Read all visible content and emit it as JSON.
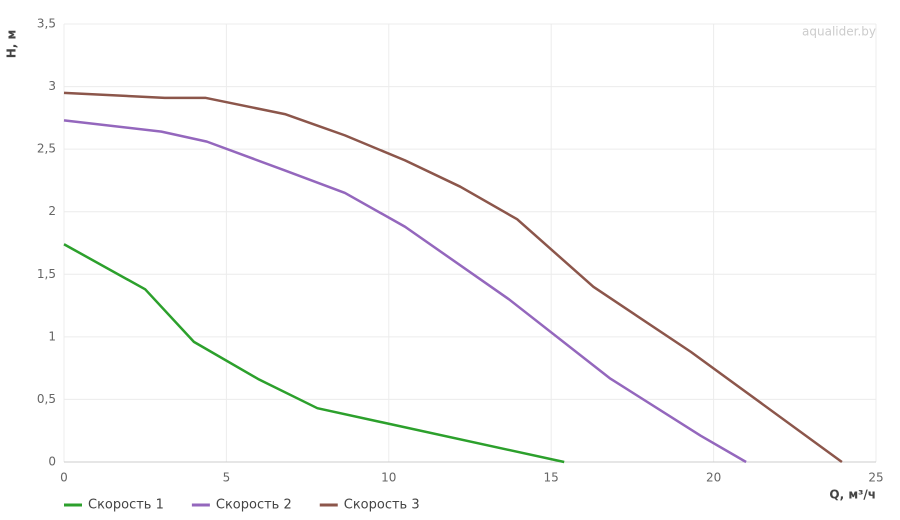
{
  "chart_data": {
    "type": "line",
    "x_label": "Q, м³/ч",
    "y_label": "H, м",
    "watermark": "aqualider.by",
    "xlim": [
      0,
      25
    ],
    "xticks": [
      0,
      5,
      10,
      15,
      20,
      25
    ],
    "ylim": [
      0,
      3.5
    ],
    "yticks": [
      0,
      {
        "value": 0.5,
        "label": "0,5"
      },
      1,
      {
        "value": 1.5,
        "label": "1,5"
      },
      2,
      {
        "value": 2.5,
        "label": "2,5"
      },
      3,
      {
        "value": 3.5,
        "label": "3,5"
      }
    ],
    "grid": true,
    "legend": "bottom-left",
    "series": [
      {
        "name": "Скорость 1",
        "color": "#2ca02c",
        "x": [
          0,
          2.5,
          4,
          6,
          7.8,
          15.4
        ],
        "values": [
          1.74,
          1.38,
          0.96,
          0.66,
          0.43,
          0
        ]
      },
      {
        "name": "Скорость 2",
        "color": "#9467bd",
        "x": [
          0,
          3,
          4.4,
          6.8,
          8.65,
          10.5,
          13.7,
          16.8,
          19.6,
          21
        ],
        "values": [
          2.73,
          2.64,
          2.56,
          2.33,
          2.15,
          1.88,
          1.3,
          0.67,
          0.21,
          0
        ]
      },
      {
        "name": "Скорость 3",
        "color": "#8c564b",
        "x": [
          0,
          3.1,
          4.35,
          6.8,
          8.65,
          10.5,
          12.2,
          13.95,
          16.3,
          19.3,
          23.95
        ],
        "values": [
          2.95,
          2.91,
          2.91,
          2.78,
          2.61,
          2.41,
          2.2,
          1.94,
          1.4,
          0.88,
          0
        ]
      }
    ]
  }
}
